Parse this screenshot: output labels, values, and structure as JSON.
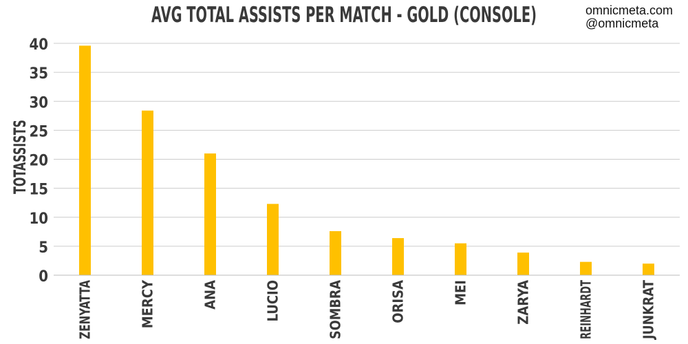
{
  "attribution": {
    "site": "omnicmeta.com",
    "handle": "@omnicmeta"
  },
  "colors": {
    "bar": "#FFC000",
    "grid": "#CCCCCC",
    "text": "#3A3A3A"
  },
  "chart_data": {
    "type": "bar",
    "title": "AVG TOTAL ASSISTS PER MATCH - GOLD (CONSOLE)",
    "xlabel": "",
    "ylabel": "TOTASSISTS",
    "ylim": [
      0,
      40
    ],
    "yticks": [
      0,
      5,
      10,
      15,
      20,
      25,
      30,
      35,
      40
    ],
    "grid": true,
    "legend": "none",
    "categories": [
      "ZENYATTA",
      "MERCY",
      "ANA",
      "LUCIO",
      "SOMBRA",
      "ORISA",
      "MEI",
      "ZARYA",
      "REINHARDT",
      "JUNKRAT"
    ],
    "values": [
      39.6,
      28.4,
      21.0,
      12.3,
      7.6,
      6.4,
      5.5,
      3.9,
      2.3,
      2.0
    ]
  }
}
